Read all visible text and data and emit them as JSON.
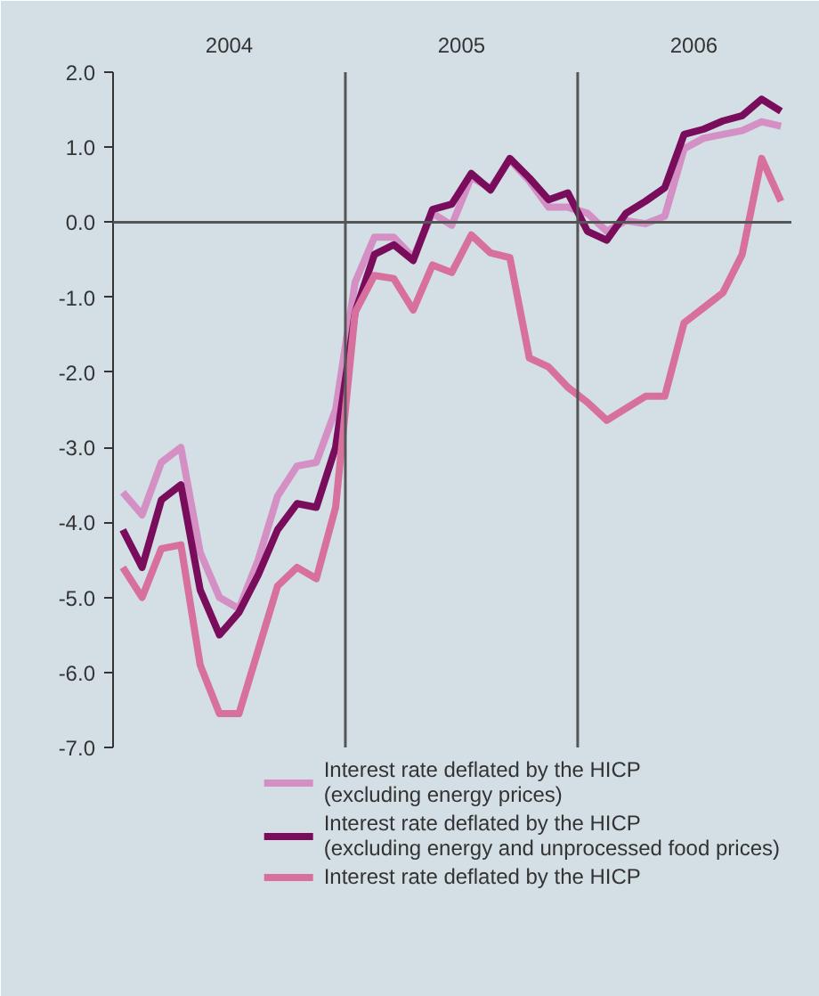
{
  "chart_data": {
    "type": "line",
    "x": [
      2004.042,
      2004.125,
      2004.208,
      2004.292,
      2004.375,
      2004.458,
      2004.542,
      2004.625,
      2004.708,
      2004.792,
      2004.875,
      2004.958,
      2005.042,
      2005.125,
      2005.208,
      2005.292,
      2005.375,
      2005.458,
      2005.542,
      2005.625,
      2005.708,
      2005.792,
      2005.875,
      2005.958,
      2006.042,
      2006.125,
      2006.208,
      2006.292,
      2006.375,
      2006.458,
      2006.542,
      2006.625,
      2006.708,
      2006.792,
      2006.875
    ],
    "series": [
      {
        "name": "Interest rate deflated by the HICP\n(excluding energy prices)",
        "color": "#d490c4",
        "values": [
          -3.6,
          -3.9,
          -3.2,
          -3.0,
          -4.4,
          -5.0,
          -5.15,
          -4.5,
          -3.65,
          -3.25,
          -3.2,
          -2.5,
          -0.8,
          -0.2,
          -0.2,
          -0.47,
          0.12,
          -0.04,
          0.6,
          0.45,
          0.83,
          0.55,
          0.2,
          0.2,
          0.12,
          -0.12,
          0.02,
          -0.02,
          0.08,
          0.98,
          1.12,
          1.17,
          1.22,
          1.34,
          1.28
        ]
      },
      {
        "name": "Interest rate deflated by the HICP\n(excluding energy and unprocessed food prices)",
        "color": "#7a0c5c",
        "values": [
          -4.1,
          -4.6,
          -3.7,
          -3.5,
          -4.9,
          -5.5,
          -5.2,
          -4.7,
          -4.1,
          -3.75,
          -3.8,
          -3.0,
          -1.2,
          -0.43,
          -0.3,
          -0.51,
          0.17,
          0.24,
          0.65,
          0.43,
          0.85,
          0.59,
          0.3,
          0.39,
          -0.12,
          -0.24,
          0.12,
          0.28,
          0.46,
          1.17,
          1.24,
          1.35,
          1.42,
          1.64,
          1.48
        ]
      },
      {
        "name": "Interest rate deflated by the HICP",
        "color": "#d8709e",
        "values": [
          -4.6,
          -5.0,
          -4.35,
          -4.3,
          -5.9,
          -6.55,
          -6.55,
          -5.7,
          -4.85,
          -4.6,
          -4.75,
          -3.8,
          -1.2,
          -0.71,
          -0.75,
          -1.17,
          -0.57,
          -0.67,
          -0.17,
          -0.41,
          -0.47,
          -1.81,
          -1.93,
          -2.2,
          -2.4,
          -2.64,
          -2.48,
          -2.32,
          -2.32,
          -1.34,
          -1.14,
          -0.94,
          -0.43,
          0.85,
          0.28
        ]
      }
    ],
    "xlim": [
      2004,
      2006.92
    ],
    "xticks": [
      {
        "value": 2004.5,
        "label": "2004"
      },
      {
        "value": 2005.5,
        "label": "2005"
      },
      {
        "value": 2006.5,
        "label": "2006"
      }
    ],
    "ylim": [
      -7,
      2
    ],
    "yticks": [
      {
        "value": 2,
        "label": "2.0"
      },
      {
        "value": 1,
        "label": "1.0"
      },
      {
        "value": 0,
        "label": "0.0"
      },
      {
        "value": -1,
        "label": "-1.0"
      },
      {
        "value": -2,
        "label": "-2.0"
      },
      {
        "value": -3,
        "label": "-3.0"
      },
      {
        "value": -4,
        "label": "-4.0"
      },
      {
        "value": -5,
        "label": "-5.0"
      },
      {
        "value": -6,
        "label": "-6.0"
      },
      {
        "value": -7,
        "label": "-7.0"
      }
    ],
    "ref_lines": [
      {
        "axis": "y",
        "value": 0,
        "color": "#555555"
      },
      {
        "axis": "x",
        "value": 2005,
        "color": "#555555"
      },
      {
        "axis": "x",
        "value": 2006,
        "color": "#555555"
      }
    ],
    "grid": false,
    "legend": "bottom",
    "line_style": "solid",
    "marker": "none"
  }
}
